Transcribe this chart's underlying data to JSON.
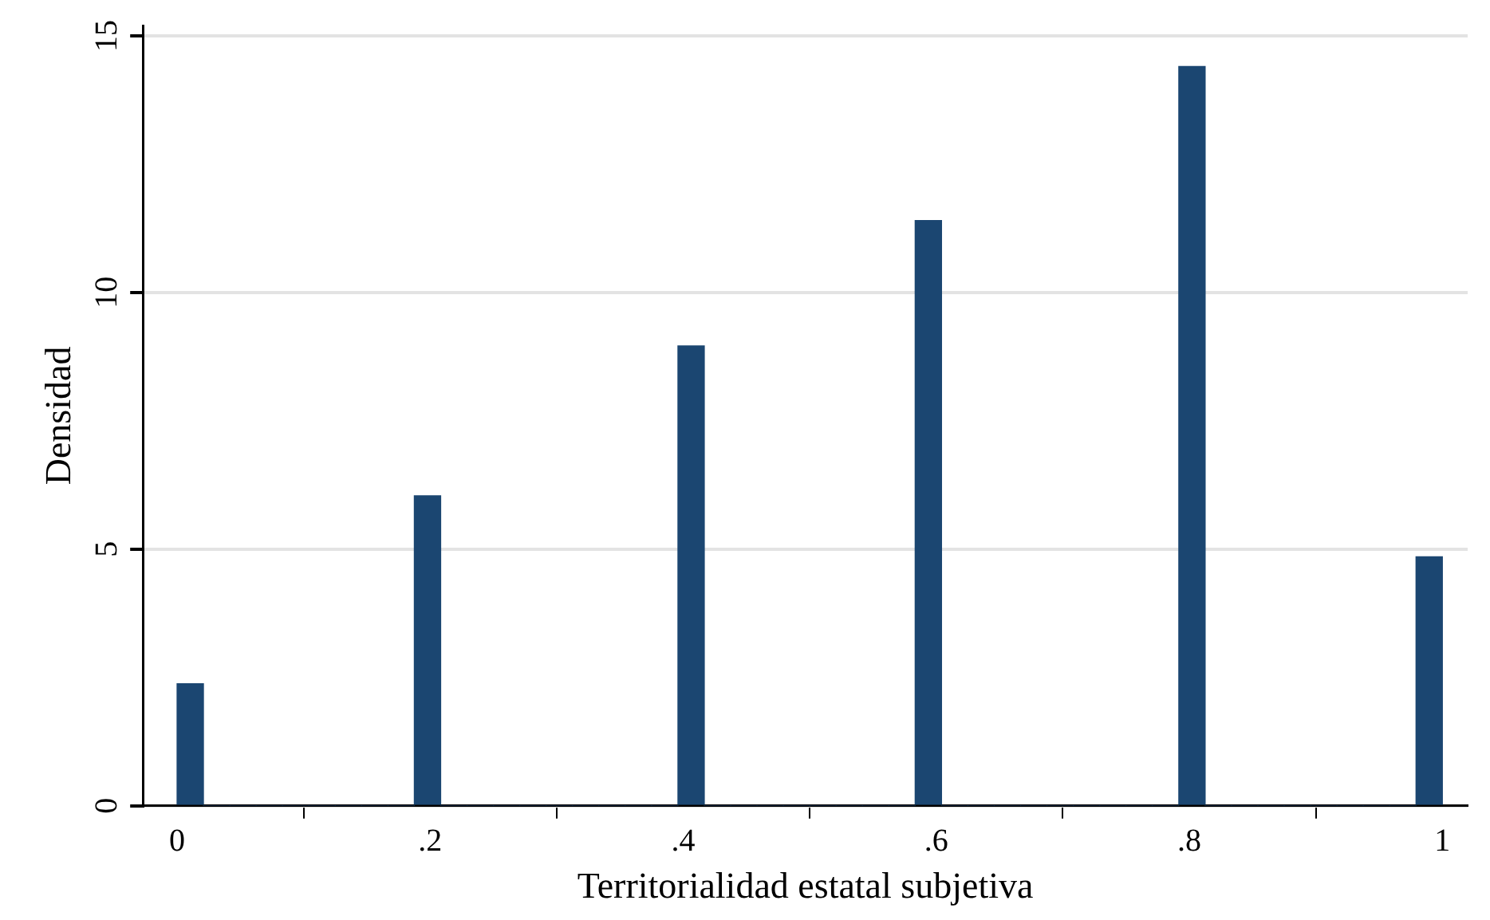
{
  "chart_data": {
    "type": "histogram",
    "xlabel": "Territorialidad estatal subjetiva",
    "ylabel": "Densidad",
    "color": "#1b4671",
    "bins": [
      0,
      0.0208,
      0.0417,
      0.0625,
      0.0833,
      0.1042,
      0.125,
      0.1458,
      0.1667,
      0.1875,
      0.2083,
      0.2292,
      0.25,
      0.2708,
      0.2917,
      0.3125,
      0.3333,
      0.3542,
      0.375,
      0.3958,
      0.4167,
      0.4375,
      0.4583,
      0.4792,
      0.5,
      0.5208,
      0.5417,
      0.5625,
      0.5833,
      0.6042,
      0.625,
      0.6458,
      0.6667,
      0.6875,
      0.7083,
      0.7292,
      0.75,
      0.7708,
      0.7917,
      0.8125,
      0.8333,
      0.8542,
      0.875,
      0.8958,
      0.9167,
      0.9375,
      0.9583,
      0.9792,
      1
    ],
    "values": [
      2.38,
      0,
      0,
      0,
      0,
      0,
      0,
      0,
      0,
      6.04,
      0,
      0,
      0,
      0,
      0,
      0,
      0,
      0,
      0,
      8.96,
      0,
      0,
      0,
      0,
      0,
      0,
      0,
      0,
      11.4,
      0,
      0,
      0,
      0,
      0,
      0,
      0,
      0,
      0,
      14.4,
      0,
      0,
      0,
      0,
      0,
      0,
      0,
      0,
      4.85
    ],
    "xlim": [
      -0.027,
      1.02
    ],
    "xticks": [
      0,
      {
        "value": 0.2,
        "label": ".2"
      },
      {
        "value": 0.4,
        "label": ".4"
      },
      {
        "value": 0.6,
        "label": ".6"
      },
      {
        "value": 0.8,
        "label": ".8"
      },
      1
    ],
    "ylim": [
      0,
      15.2
    ],
    "yticks": [
      0,
      5,
      10,
      15
    ],
    "grid": "y",
    "legend": false
  }
}
